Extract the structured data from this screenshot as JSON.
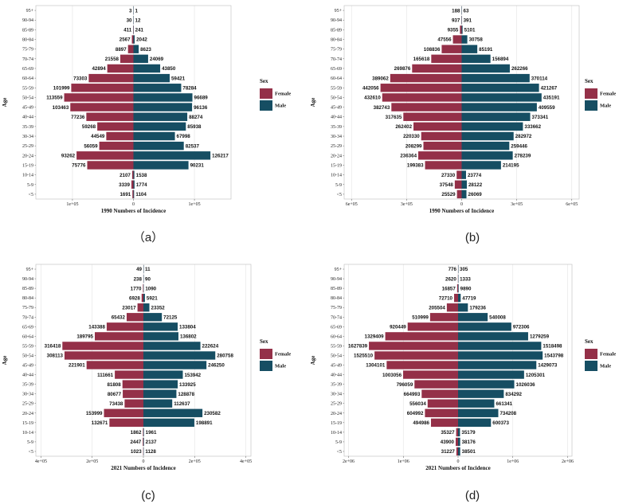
{
  "chart_data": [
    {
      "type": "bar",
      "panel_label": "（a）",
      "xlabel": "1990 Numbers of Incidence",
      "ylabel": "Age",
      "xlim": [
        -160000,
        160000
      ],
      "xticks": [
        -100000,
        0,
        100000
      ],
      "xtick_labels": [
        "1e+05",
        "0",
        "1e+05"
      ],
      "legend": {
        "title": "Sex",
        "placement": "right"
      },
      "categories": [
        "95+",
        "90-94",
        "85-89",
        "80-84",
        "75-79",
        "70-74",
        "65-69",
        "60-64",
        "55-59",
        "50-54",
        "45-49",
        "40-44",
        "35-39",
        "30-34",
        "25-29",
        "20-24",
        "15-19",
        "10-14",
        "5-9",
        "<5"
      ],
      "series": [
        {
          "name": "Female",
          "color": "#943048",
          "side": "left",
          "values": [
            3,
            30,
            411,
            2567,
            8897,
            21558,
            42894,
            73303,
            101999,
            113559,
            103463,
            77236,
            59268,
            44549,
            56059,
            93262,
            75776,
            2107,
            3339,
            1691
          ]
        },
        {
          "name": "Male",
          "color": "#164E63",
          "side": "right",
          "values": [
            1,
            12,
            241,
            2042,
            8623,
            24069,
            43850,
            59421,
            78284,
            96689,
            96136,
            88274,
            85938,
            67998,
            82537,
            126217,
            90231,
            1538,
            1774,
            1104
          ]
        }
      ]
    },
    {
      "type": "bar",
      "panel_label": "(b)",
      "xlabel": "1990 Numbers of Incidence",
      "ylabel": "Age",
      "xlim": [
        -640000,
        640000
      ],
      "xticks": [
        -600000,
        -300000,
        0,
        300000,
        600000
      ],
      "xtick_labels": [
        "6e+05",
        "3e+05",
        "0",
        "3e+05",
        "6e+05"
      ],
      "legend": {
        "title": "Sex",
        "placement": "right"
      },
      "categories": [
        "95+",
        "90-94",
        "85-89",
        "80-84",
        "75-79",
        "70-74",
        "65-69",
        "60-64",
        "55-59",
        "50-54",
        "45-49",
        "40-44",
        "35-39",
        "30-34",
        "25-29",
        "20-24",
        "15-19",
        "10-14",
        "5-9",
        "<5"
      ],
      "series": [
        {
          "name": "Female",
          "color": "#943048",
          "side": "left",
          "values": [
            188,
            937,
            9355,
            47556,
            108836,
            165618,
            269876,
            389062,
            442056,
            432610,
            382743,
            317635,
            262402,
            220330,
            208299,
            236364,
            199383,
            27330,
            37548,
            25529
          ]
        },
        {
          "name": "Male",
          "color": "#164E63",
          "side": "right",
          "values": [
            63,
            391,
            5101,
            30758,
            85191,
            156894,
            262266,
            370114,
            421267,
            435191,
            409559,
            373341,
            333662,
            282972,
            259446,
            278239,
            214195,
            23774,
            28122,
            26069
          ]
        }
      ]
    },
    {
      "type": "bar",
      "panel_label": "(c)",
      "xlabel": "2021 Numbers of Incidence",
      "ylabel": "Age",
      "xlim": [
        -420000,
        420000
      ],
      "xticks": [
        -400000,
        -200000,
        0,
        200000,
        400000
      ],
      "xtick_labels": [
        "4e+05",
        "2e+05",
        "0",
        "2e+05",
        "4e+05"
      ],
      "legend": {
        "title": "Sex",
        "placement": "right"
      },
      "categories": [
        "95+",
        "90-94",
        "85-89",
        "80-84",
        "75-79",
        "70-74",
        "65-69",
        "60-64",
        "55-59",
        "50-54",
        "45-49",
        "40-44",
        "35-39",
        "30-34",
        "25-29",
        "20-24",
        "15-19",
        "10-14",
        "5-9",
        "<5"
      ],
      "series": [
        {
          "name": "Female",
          "color": "#943048",
          "side": "left",
          "values": [
            49,
            238,
            1770,
            6928,
            23017,
            65432,
            143388,
            189795,
            316418,
            308113,
            221901,
            111661,
            81808,
            80677,
            73438,
            153999,
            132671,
            1862,
            2447,
            1023
          ]
        },
        {
          "name": "Male",
          "color": "#164E63",
          "side": "right",
          "values": [
            11,
            90,
            1090,
            5921,
            23352,
            72125,
            133804,
            136802,
            222624,
            280758,
            246250,
            153942,
            133925,
            128878,
            112637,
            230582,
            198891,
            1961,
            2137,
            1128
          ]
        }
      ]
    },
    {
      "type": "bar",
      "panel_label": "(d)",
      "xlabel": "2021 Numbers of Incidence",
      "ylabel": "Age",
      "xlim": [
        -2080000,
        2080000
      ],
      "xticks": [
        -2000000,
        -1000000,
        0,
        1000000,
        2000000
      ],
      "xtick_labels": [
        "2e+06",
        "1e+06",
        "0",
        "1e+06",
        "2e+06"
      ],
      "legend": {
        "title": "Sex",
        "placement": "right"
      },
      "categories": [
        "95+",
        "90-94",
        "85-89",
        "80-84",
        "75-79",
        "70-74",
        "65-69",
        "60-64",
        "55-59",
        "50-54",
        "45-49",
        "40-44",
        "35-39",
        "30-34",
        "25-29",
        "20-24",
        "15-19",
        "10-14",
        "5-9",
        "<5"
      ],
      "series": [
        {
          "name": "Female",
          "color": "#943048",
          "side": "left",
          "values": [
            776,
            2620,
            16857,
            72710,
            205504,
            510999,
            920449,
            1329409,
            1627839,
            1525510,
            1304101,
            1003056,
            796059,
            664993,
            556034,
            604992,
            494986,
            35327,
            43900,
            31227
          ]
        },
        {
          "name": "Male",
          "color": "#164E63",
          "side": "right",
          "values": [
            305,
            1333,
            9890,
            47719,
            179236,
            540008,
            972306,
            1279259,
            1518498,
            1543798,
            1429073,
            1205301,
            1026036,
            834292,
            661341,
            734208,
            600373,
            35179,
            38176,
            38501
          ]
        }
      ]
    }
  ]
}
